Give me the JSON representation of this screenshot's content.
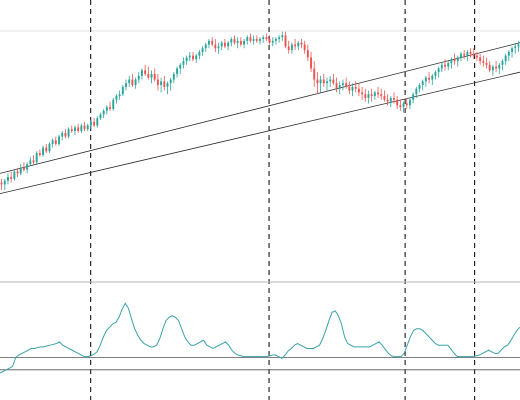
{
  "chart_data": [
    {
      "type": "candlestick",
      "title": "",
      "xlabel": "",
      "ylabel": "",
      "grid": false,
      "legend": "none",
      "x_range": [
        0,
        172
      ],
      "ylim": [
        0,
        100
      ],
      "colors": {
        "up": "#26a69a",
        "down": "#ef5350",
        "trendline": "#2b2b2b",
        "vline": "#000000"
      },
      "candles": [
        [
          16,
          18,
          12,
          15
        ],
        [
          15,
          18,
          12,
          17
        ],
        [
          17,
          21,
          15,
          19
        ],
        [
          19,
          22,
          16,
          18
        ],
        [
          18,
          23,
          17,
          22
        ],
        [
          22,
          24,
          19,
          21
        ],
        [
          21,
          26,
          20,
          24
        ],
        [
          24,
          27,
          22,
          23
        ],
        [
          23,
          27,
          21,
          26
        ],
        [
          26,
          30,
          25,
          28
        ],
        [
          28,
          31,
          26,
          27
        ],
        [
          27,
          33,
          26,
          32
        ],
        [
          32,
          34,
          30,
          31
        ],
        [
          31,
          36,
          30,
          35
        ],
        [
          35,
          37,
          32,
          33
        ],
        [
          33,
          38,
          32,
          37
        ],
        [
          37,
          40,
          35,
          39
        ],
        [
          39,
          41,
          36,
          37
        ],
        [
          37,
          42,
          36,
          41
        ],
        [
          41,
          44,
          39,
          43
        ],
        [
          43,
          45,
          40,
          41
        ],
        [
          41,
          46,
          40,
          45
        ],
        [
          45,
          47,
          43,
          44
        ],
        [
          44,
          47,
          42,
          46
        ],
        [
          46,
          48,
          43,
          44
        ],
        [
          44,
          48,
          43,
          47
        ],
        [
          47,
          49,
          44,
          45
        ],
        [
          45,
          48,
          44,
          47
        ],
        [
          47,
          50,
          45,
          49
        ],
        [
          49,
          51,
          46,
          47
        ],
        [
          47,
          52,
          46,
          51
        ],
        [
          51,
          54,
          50,
          53
        ],
        [
          53,
          56,
          51,
          55
        ],
        [
          55,
          58,
          53,
          57
        ],
        [
          57,
          60,
          55,
          56
        ],
        [
          56,
          62,
          55,
          61
        ],
        [
          61,
          64,
          59,
          63
        ],
        [
          63,
          66,
          61,
          64
        ],
        [
          64,
          69,
          63,
          68
        ],
        [
          68,
          72,
          66,
          70
        ],
        [
          70,
          74,
          68,
          72
        ],
        [
          72,
          75,
          68,
          69
        ],
        [
          69,
          73,
          67,
          72
        ],
        [
          72,
          76,
          70,
          74
        ],
        [
          74,
          78,
          72,
          77
        ],
        [
          77,
          80,
          74,
          75
        ],
        [
          75,
          79,
          72,
          73
        ],
        [
          73,
          77,
          70,
          75
        ],
        [
          75,
          78,
          71,
          72
        ],
        [
          72,
          75,
          66,
          69
        ],
        [
          69,
          73,
          65,
          71
        ],
        [
          71,
          74,
          66,
          68
        ],
        [
          68,
          71,
          64,
          70
        ],
        [
          70,
          73,
          66,
          72
        ],
        [
          72,
          76,
          70,
          75
        ],
        [
          75,
          79,
          73,
          78
        ],
        [
          78,
          81,
          75,
          80
        ],
        [
          80,
          84,
          78,
          82
        ],
        [
          82,
          85,
          80,
          84
        ],
        [
          84,
          87,
          82,
          85
        ],
        [
          85,
          87,
          82,
          83
        ],
        [
          83,
          86,
          81,
          85
        ],
        [
          85,
          88,
          83,
          87
        ],
        [
          87,
          90,
          85,
          89
        ],
        [
          89,
          92,
          87,
          91
        ],
        [
          91,
          94,
          89,
          93
        ],
        [
          93,
          95,
          90,
          91
        ],
        [
          91,
          94,
          87,
          89
        ],
        [
          89,
          92,
          86,
          90
        ],
        [
          90,
          93,
          88,
          92
        ],
        [
          92,
          94,
          89,
          90
        ],
        [
          90,
          93,
          88,
          92
        ],
        [
          92,
          95,
          90,
          94
        ],
        [
          94,
          96,
          91,
          92
        ],
        [
          92,
          95,
          89,
          93
        ],
        [
          93,
          95,
          90,
          91
        ],
        [
          91,
          94,
          89,
          93
        ],
        [
          93,
          96,
          91,
          95
        ],
        [
          95,
          97,
          92,
          93
        ],
        [
          93,
          96,
          91,
          94
        ],
        [
          94,
          96,
          92,
          93
        ],
        [
          93,
          95,
          91,
          94
        ],
        [
          94,
          96,
          92,
          95
        ],
        [
          95,
          97,
          93,
          94
        ],
        [
          94,
          96,
          91,
          92
        ],
        [
          92,
          95,
          90,
          93
        ],
        [
          93,
          95,
          91,
          94
        ],
        [
          94,
          96,
          92,
          95
        ],
        [
          95,
          98,
          93,
          96
        ],
        [
          96,
          98,
          89,
          90
        ],
        [
          90,
          93,
          86,
          88
        ],
        [
          88,
          92,
          86,
          91
        ],
        [
          91,
          94,
          88,
          90
        ],
        [
          90,
          93,
          88,
          92
        ],
        [
          92,
          94,
          89,
          91
        ],
        [
          91,
          93,
          86,
          88
        ],
        [
          88,
          91,
          82,
          84
        ],
        [
          84,
          87,
          76,
          78
        ],
        [
          78,
          82,
          68,
          72
        ],
        [
          72,
          76,
          64,
          70
        ],
        [
          70,
          74,
          65,
          72
        ],
        [
          72,
          75,
          68,
          70
        ],
        [
          70,
          73,
          66,
          71
        ],
        [
          71,
          74,
          68,
          72
        ],
        [
          72,
          75,
          69,
          70
        ],
        [
          70,
          73,
          65,
          67
        ],
        [
          67,
          71,
          64,
          69
        ],
        [
          69,
          72,
          66,
          70
        ],
        [
          70,
          73,
          67,
          68
        ],
        [
          68,
          71,
          64,
          66
        ],
        [
          66,
          70,
          63,
          68
        ],
        [
          68,
          71,
          65,
          67
        ],
        [
          67,
          70,
          63,
          65
        ],
        [
          65,
          68,
          61,
          64
        ],
        [
          64,
          67,
          60,
          62
        ],
        [
          62,
          66,
          59,
          64
        ],
        [
          64,
          67,
          60,
          63
        ],
        [
          63,
          66,
          61,
          65
        ],
        [
          65,
          68,
          62,
          64
        ],
        [
          64,
          67,
          61,
          63
        ],
        [
          63,
          66,
          60,
          61
        ],
        [
          61,
          64,
          58,
          60
        ],
        [
          60,
          63,
          57,
          62
        ],
        [
          62,
          65,
          59,
          61
        ],
        [
          61,
          63,
          56,
          58
        ],
        [
          58,
          61,
          55,
          57
        ],
        [
          57,
          60,
          54,
          59
        ],
        [
          59,
          62,
          56,
          58
        ],
        [
          58,
          62,
          56,
          61
        ],
        [
          61,
          65,
          59,
          64
        ],
        [
          64,
          68,
          62,
          67
        ],
        [
          67,
          70,
          65,
          69
        ],
        [
          69,
          72,
          66,
          71
        ],
        [
          71,
          74,
          68,
          73
        ],
        [
          73,
          76,
          70,
          72
        ],
        [
          72,
          75,
          69,
          74
        ],
        [
          74,
          77,
          72,
          76
        ],
        [
          76,
          79,
          73,
          78
        ],
        [
          78,
          81,
          76,
          80
        ],
        [
          80,
          83,
          77,
          79
        ],
        [
          79,
          82,
          77,
          81
        ],
        [
          81,
          84,
          78,
          83
        ],
        [
          83,
          86,
          80,
          82
        ],
        [
          82,
          85,
          79,
          84
        ],
        [
          84,
          87,
          82,
          86
        ],
        [
          86,
          88,
          83,
          85
        ],
        [
          85,
          88,
          82,
          87
        ],
        [
          87,
          89,
          84,
          86
        ],
        [
          86,
          89,
          83,
          85
        ],
        [
          85,
          87,
          82,
          84
        ],
        [
          84,
          86,
          80,
          82
        ],
        [
          82,
          85,
          79,
          81
        ],
        [
          81,
          84,
          78,
          80
        ],
        [
          80,
          82,
          76,
          77
        ],
        [
          77,
          80,
          74,
          79
        ],
        [
          79,
          82,
          76,
          78
        ],
        [
          78,
          81,
          75,
          80
        ],
        [
          80,
          83,
          77,
          82
        ],
        [
          82,
          86,
          80,
          85
        ],
        [
          85,
          88,
          82,
          87
        ],
        [
          87,
          90,
          84,
          89
        ],
        [
          89,
          92,
          86,
          90
        ],
        [
          90,
          93,
          87,
          91
        ]
      ],
      "trendlines": [
        {
          "start": [
            0,
            21
          ],
          "end": [
            172,
            92
          ]
        },
        {
          "start": [
            0,
            10
          ],
          "end": [
            172,
            76
          ]
        }
      ],
      "vertical_markers": [
        30,
        89,
        134,
        157
      ]
    },
    {
      "type": "line",
      "title": "",
      "xlabel": "",
      "ylabel": "",
      "x_range": [
        0,
        172
      ],
      "ylim": [
        0,
        100
      ],
      "line_color": "#3aa3a9",
      "hlines": [
        25,
        10
      ],
      "values": [
        6,
        8,
        10,
        12,
        14,
        25,
        28,
        30,
        32,
        34,
        36,
        36,
        37,
        38,
        38,
        39,
        40,
        41,
        42,
        44,
        40,
        38,
        36,
        34,
        32,
        30,
        28,
        26,
        26,
        27,
        29,
        32,
        40,
        50,
        58,
        62,
        66,
        68,
        74,
        84,
        91,
        85,
        72,
        60,
        52,
        46,
        42,
        40,
        38,
        38,
        40,
        48,
        60,
        70,
        74,
        76,
        74,
        70,
        60,
        50,
        44,
        40,
        40,
        42,
        44,
        46,
        40,
        38,
        36,
        38,
        40,
        42,
        44,
        40,
        34,
        30,
        28,
        27,
        26,
        26,
        26,
        26,
        26,
        26,
        26,
        26,
        27,
        28,
        28,
        26,
        24,
        28,
        33,
        36,
        40,
        42,
        40,
        38,
        36,
        36,
        36,
        38,
        40,
        48,
        58,
        70,
        80,
        82,
        76,
        66,
        50,
        42,
        40,
        38,
        38,
        38,
        38,
        38,
        38,
        40,
        42,
        44,
        40,
        35,
        30,
        27,
        26,
        26,
        26,
        30,
        40,
        50,
        58,
        60,
        60,
        58,
        54,
        50,
        46,
        42,
        40,
        40,
        40,
        40,
        35,
        30,
        26,
        26,
        26,
        26,
        26,
        26,
        27,
        28,
        30,
        32,
        34,
        32,
        30,
        30,
        34,
        38,
        40,
        45,
        52,
        58,
        62
      ]
    }
  ]
}
